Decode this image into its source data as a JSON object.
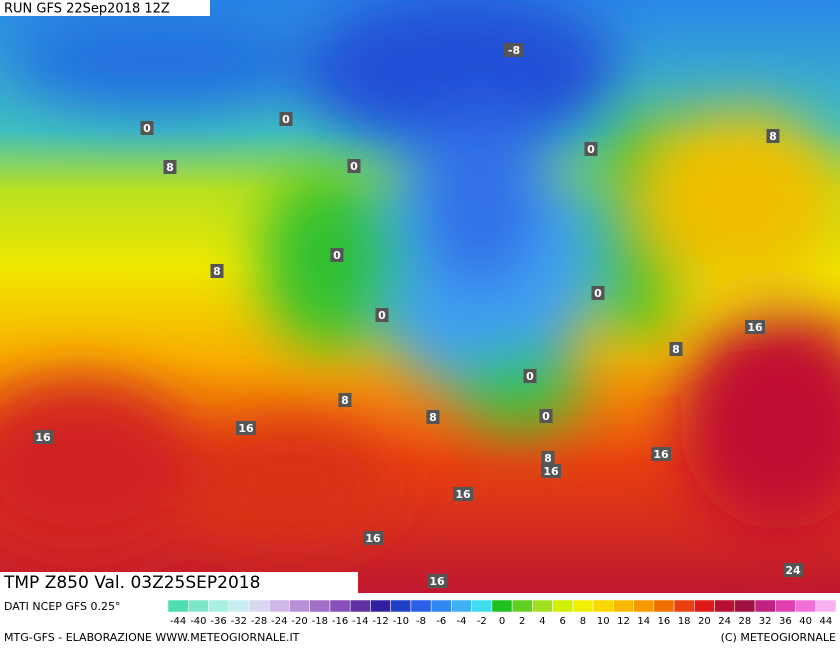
{
  "header": {
    "run": "RUN GFS 22Sep2018 12Z"
  },
  "footer": {
    "title": "TMP Z850 Val. 03Z25SEP2018",
    "source": "DATI NCEP GFS 0.25°",
    "credit": "MTG-GFS - ELABORAZIONE WWW.METEOGIORNALE.IT",
    "copyright": "(C) METEOGIORNALE"
  },
  "contour_labels": [
    "-8",
    "0",
    "0",
    "0",
    "0",
    "8",
    "8",
    "0",
    "8",
    "0",
    "0",
    "16",
    "8",
    "0",
    "8",
    "8",
    "0",
    "16",
    "16",
    "8",
    "16",
    "16",
    "16",
    "16",
    "16",
    "24"
  ],
  "legend": {
    "ticks": [
      -44,
      -40,
      -36,
      -32,
      -28,
      -24,
      -20,
      -18,
      -16,
      -14,
      -12,
      -10,
      -8,
      -6,
      -4,
      -2,
      0,
      2,
      4,
      6,
      8,
      10,
      12,
      14,
      16,
      18,
      20,
      24,
      28,
      32,
      36,
      40,
      44
    ],
    "colors": [
      "#4fdcb0",
      "#7ee6c8",
      "#aaf0e0",
      "#c8eef4",
      "#d8d8f0",
      "#d0b8e8",
      "#b890d8",
      "#a070c8",
      "#8850b8",
      "#6030a0",
      "#3020a0",
      "#2040c8",
      "#2860e8",
      "#3088f0",
      "#40b0f4",
      "#40dcf0",
      "#20c020",
      "#60d020",
      "#a0e020",
      "#d0f000",
      "#f0f000",
      "#f8d800",
      "#f8b800",
      "#f89800",
      "#f07000",
      "#e84010",
      "#e01818",
      "#b81030",
      "#a01040",
      "#c02080",
      "#e040b0",
      "#f070d8",
      "#f8b0f0"
    ]
  }
}
